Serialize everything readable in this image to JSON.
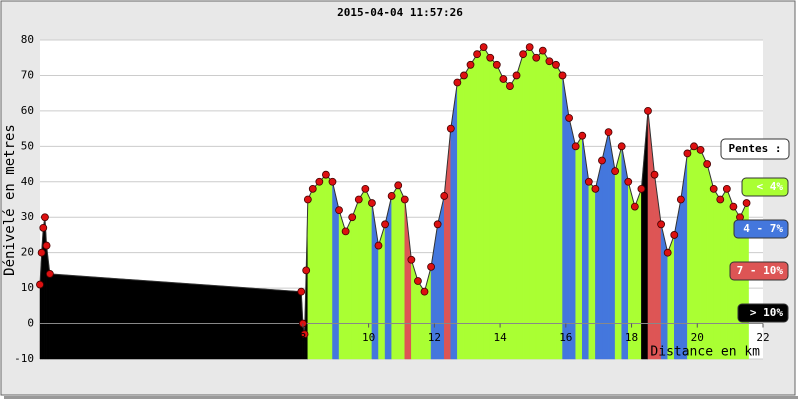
{
  "chart_data": {
    "type": "profile",
    "title": "2015-04-04 11:57:26",
    "y_label": "Dénivelé en metres",
    "x_label": "Distance en km",
    "xlim": [
      0,
      22
    ],
    "xticks": [
      8,
      10,
      12,
      14,
      16,
      18,
      20,
      22
    ],
    "ylim": [
      -10,
      80
    ],
    "yticks": [
      -10,
      0,
      10,
      20,
      30,
      40,
      50,
      60,
      70,
      80
    ],
    "grid": true,
    "point_color": "#dd1111",
    "x": [
      0.0,
      0.05,
      0.1,
      0.15,
      0.2,
      0.3,
      7.95,
      8.0,
      8.05,
      8.1,
      8.15,
      8.3,
      8.5,
      8.7,
      8.9,
      9.1,
      9.3,
      9.5,
      9.7,
      9.9,
      10.1,
      10.3,
      10.5,
      10.7,
      10.9,
      11.1,
      11.3,
      11.5,
      11.7,
      11.9,
      12.1,
      12.3,
      12.5,
      12.7,
      12.9,
      13.1,
      13.3,
      13.5,
      13.7,
      13.9,
      14.1,
      14.3,
      14.5,
      14.7,
      14.9,
      15.1,
      15.3,
      15.5,
      15.7,
      15.9,
      16.1,
      16.3,
      16.5,
      16.7,
      16.9,
      17.1,
      17.3,
      17.5,
      17.7,
      17.9,
      18.1,
      18.3,
      18.5,
      18.7,
      18.9,
      19.1,
      19.3,
      19.5,
      19.7,
      19.9,
      20.1,
      20.3,
      20.5,
      20.7,
      20.9,
      21.1,
      21.3,
      21.5
    ],
    "values": [
      11,
      20,
      27,
      30,
      22,
      14,
      9,
      0,
      -3,
      15,
      35,
      38,
      40,
      42,
      40,
      32,
      26,
      30,
      35,
      38,
      34,
      22,
      28,
      36,
      39,
      35,
      18,
      12,
      9,
      16,
      28,
      36,
      55,
      68,
      70,
      73,
      76,
      78,
      75,
      73,
      69,
      67,
      70,
      76,
      78,
      75,
      77,
      74,
      73,
      70,
      58,
      50,
      53,
      40,
      38,
      46,
      54,
      43,
      50,
      40,
      33,
      38,
      60,
      42,
      28,
      20,
      25,
      35,
      48,
      50,
      49,
      45,
      38,
      35,
      38,
      33,
      30,
      34
    ],
    "bar_colors": [
      "#000000",
      "#000000",
      "#000000",
      "#000000",
      "#000000",
      "#000000",
      "#000000",
      "#000000",
      "#000000",
      "#000000",
      "#aaff33",
      "#aaff33",
      "#aaff33",
      "#aaff33",
      "#4477dd",
      "#aaff33",
      "#aaff33",
      "#aaff33",
      "#aaff33",
      "#aaff33",
      "#4477dd",
      "#aaff33",
      "#4477dd",
      "#aaff33",
      "#aaff33",
      "#dd5555",
      "#aaff33",
      "#aaff33",
      "#aaff33",
      "#4477dd",
      "#4477dd",
      "#dd5555",
      "#4477dd",
      "#aaff33",
      "#aaff33",
      "#aaff33",
      "#aaff33",
      "#aaff33",
      "#aaff33",
      "#aaff33",
      "#aaff33",
      "#aaff33",
      "#aaff33",
      "#aaff33",
      "#aaff33",
      "#aaff33",
      "#aaff33",
      "#aaff33",
      "#aaff33",
      "#4477dd",
      "#4477dd",
      "#aaff33",
      "#4477dd",
      "#aaff33",
      "#4477dd",
      "#4477dd",
      "#4477dd",
      "#aaff33",
      "#4477dd",
      "#aaff33",
      "#aaff33",
      "#000000",
      "#dd5555",
      "#dd5555",
      "#4477dd",
      "#aaff33",
      "#4477dd",
      "#4477dd",
      "#aaff33",
      "#aaff33",
      "#aaff33",
      "#aaff33",
      "#aaff33",
      "#aaff33",
      "#aaff33",
      "#aaff33",
      "#aaff33",
      "#aaff33"
    ],
    "legend": {
      "title": "Pentes :",
      "items": [
        {
          "label": "< 4%",
          "color": "#aaff33"
        },
        {
          "label": "4 - 7%",
          "color": "#4477dd"
        },
        {
          "label": "7 - 10%",
          "color": "#dd5555"
        },
        {
          "label": "> 10%",
          "color": "#000000"
        }
      ]
    }
  }
}
